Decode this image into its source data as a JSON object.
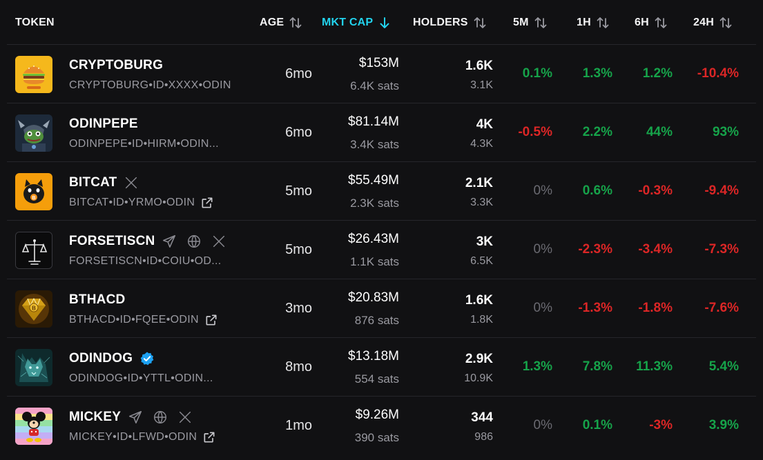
{
  "header": {
    "token": "TOKEN",
    "age": "AGE",
    "mkt_cap": "MKT CAP",
    "holders": "HOLDERS",
    "m5": "5M",
    "h1": "1H",
    "h6": "6H",
    "h24": "24H"
  },
  "colors": {
    "accent": "#22d3ee",
    "positive": "#16a34a",
    "negative": "#dc2626",
    "neutral": "#6b6b72",
    "background": "#111113"
  },
  "rows": [
    {
      "name": "CRYPTOBURG",
      "ticker": "CRYPTOBURG•ID•XXXX•ODIN",
      "age": "6mo",
      "mkt_cap": "$153M",
      "sats": "6.4K sats",
      "holders": "1.6K",
      "holders_sub": "3.1K",
      "m5": "0.1%",
      "h1": "1.3%",
      "h6": "1.2%",
      "h24": "-10.4%",
      "icons": []
    },
    {
      "name": "ODINPEPE",
      "ticker": "ODINPEPE•ID•HIRM•ODIN...",
      "age": "6mo",
      "mkt_cap": "$81.14M",
      "sats": "3.4K sats",
      "holders": "4K",
      "holders_sub": "4.3K",
      "m5": "-0.5%",
      "h1": "2.2%",
      "h6": "44%",
      "h24": "93%",
      "icons": []
    },
    {
      "name": "BITCAT",
      "ticker": "BITCAT•ID•YRMO•ODIN",
      "age": "5mo",
      "mkt_cap": "$55.49M",
      "sats": "2.3K sats",
      "holders": "2.1K",
      "holders_sub": "3.3K",
      "m5": "0%",
      "h1": "0.6%",
      "h6": "-0.3%",
      "h24": "-9.4%",
      "icons": [
        "x-icon",
        "external-link-icon"
      ]
    },
    {
      "name": "FORSETISCN",
      "ticker": "FORSETISCN•ID•COIU•OD...",
      "age": "5mo",
      "mkt_cap": "$26.43M",
      "sats": "1.1K sats",
      "holders": "3K",
      "holders_sub": "6.5K",
      "m5": "0%",
      "h1": "-2.3%",
      "h6": "-3.4%",
      "h24": "-7.3%",
      "icons": [
        "telegram-icon",
        "globe-icon",
        "x-icon"
      ]
    },
    {
      "name": "BTHACD",
      "ticker": "BTHACD•ID•FQEE•ODIN",
      "age": "3mo",
      "mkt_cap": "$20.83M",
      "sats": "876 sats",
      "holders": "1.6K",
      "holders_sub": "1.8K",
      "m5": "0%",
      "h1": "-1.3%",
      "h6": "-1.8%",
      "h24": "-7.6%",
      "icons": [
        "external-link-icon"
      ]
    },
    {
      "name": "ODINDOG",
      "ticker": "ODINDOG•ID•YTTL•ODIN...",
      "age": "8mo",
      "mkt_cap": "$13.18M",
      "sats": "554 sats",
      "holders": "2.9K",
      "holders_sub": "10.9K",
      "m5": "1.3%",
      "h1": "7.8%",
      "h6": "11.3%",
      "h24": "5.4%",
      "icons": [
        "verified-badge-icon"
      ]
    },
    {
      "name": "MICKEY",
      "ticker": "MICKEY•ID•LFWD•ODIN",
      "age": "1mo",
      "mkt_cap": "$9.26M",
      "sats": "390 sats",
      "holders": "344",
      "holders_sub": "986",
      "m5": "0%",
      "h1": "0.1%",
      "h6": "-3%",
      "h24": "3.9%",
      "icons": [
        "telegram-icon",
        "globe-icon",
        "x-icon",
        "external-link-icon"
      ]
    }
  ]
}
